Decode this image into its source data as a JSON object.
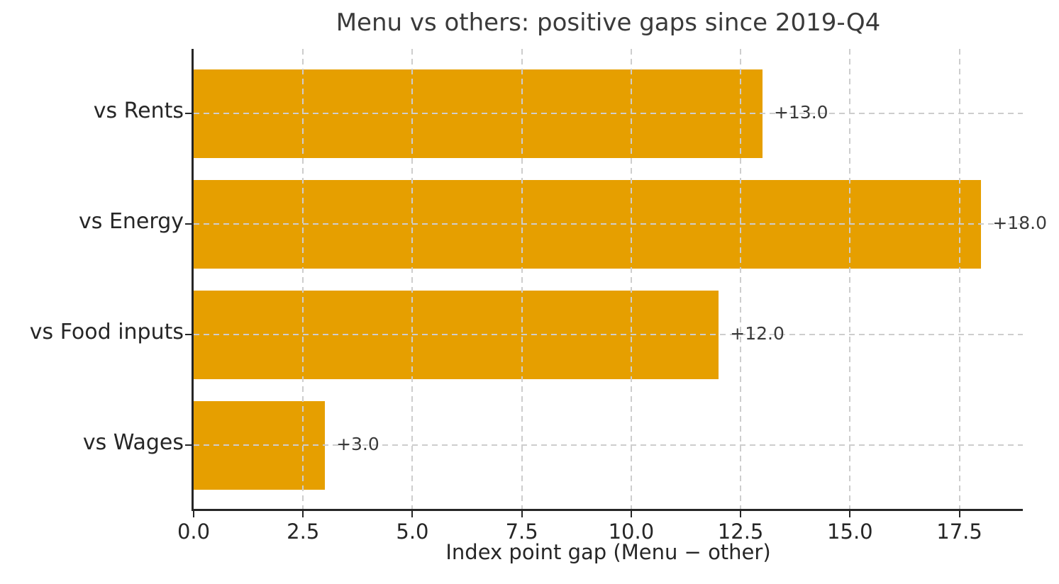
{
  "chart_data": {
    "type": "bar",
    "orientation": "horizontal",
    "title": "Menu vs others: positive gaps since 2019-Q4",
    "xlabel": "Index point gap (Menu − other)",
    "categories": [
      "vs Rents",
      "vs Energy",
      "vs Food inputs",
      "vs Wages"
    ],
    "values": [
      13.0,
      18.0,
      12.0,
      3.0
    ],
    "value_labels": [
      "+13.0",
      "+18.0",
      "+12.0",
      "+3.0"
    ],
    "x_ticks": [
      0.0,
      2.5,
      5.0,
      7.5,
      10.0,
      12.5,
      15.0,
      17.5
    ],
    "x_tick_labels": [
      "0.0",
      "2.5",
      "5.0",
      "7.5",
      "10.0",
      "12.5",
      "15.0",
      "17.5"
    ],
    "xlim": [
      0,
      18.95
    ],
    "grid": {
      "axis": "both",
      "line_style": "dashed",
      "drawn_above_bars": true
    },
    "legend": "none",
    "colors": {
      "bar": "#E69F00",
      "grid": "#cdcdcd",
      "spine": "#262626",
      "tick_text": "#262626",
      "value_label_text": "#3a3a3a",
      "title_text": "#3a3a3a",
      "background": "#ffffff"
    }
  }
}
